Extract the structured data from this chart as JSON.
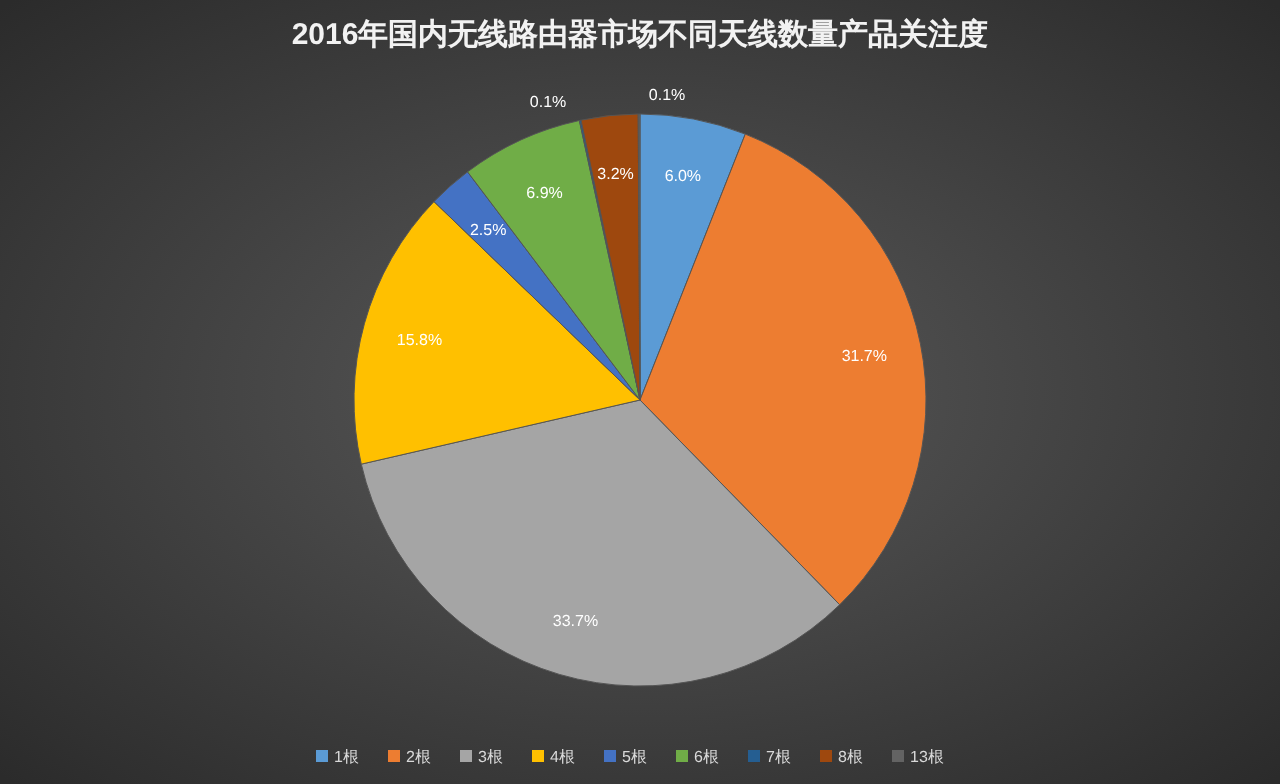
{
  "chart_data": {
    "type": "pie",
    "title": "2016年国内无线路由器市场不同天线数量产品关注度",
    "categories": [
      "1根",
      "2根",
      "3根",
      "4根",
      "5根",
      "6根",
      "7根",
      "8根",
      "13根"
    ],
    "values": [
      6.0,
      31.7,
      33.7,
      15.8,
      2.5,
      6.9,
      0.1,
      3.2,
      0.1
    ],
    "value_labels": [
      "6.0%",
      "31.7%",
      "33.7%",
      "15.8%",
      "2.5%",
      "6.9%",
      "0.1%",
      "3.2%",
      "0.1%"
    ],
    "colors": [
      "#5b9bd5",
      "#ed7d31",
      "#a5a5a5",
      "#ffc000",
      "#4472c4",
      "#70ad47",
      "#255e91",
      "#9e480e",
      "#636363"
    ],
    "legend": "bottom"
  }
}
